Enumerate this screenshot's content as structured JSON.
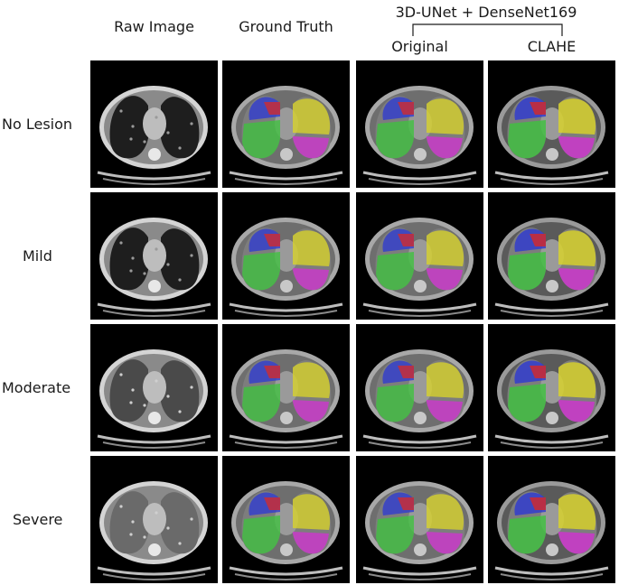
{
  "header": {
    "group_title": "3D-UNet + DenseNet169",
    "columns": [
      "Raw Image",
      "Ground Truth",
      "Original",
      "CLAHE"
    ]
  },
  "rows": [
    "No Lesion",
    "Mild",
    "Moderate",
    "Severe"
  ],
  "colors": {
    "red": "#d42a2a",
    "blue": "#2f3bd1",
    "green": "#3fc13f",
    "yellow": "#d9d32a",
    "magenta": "#cf35cf"
  }
}
